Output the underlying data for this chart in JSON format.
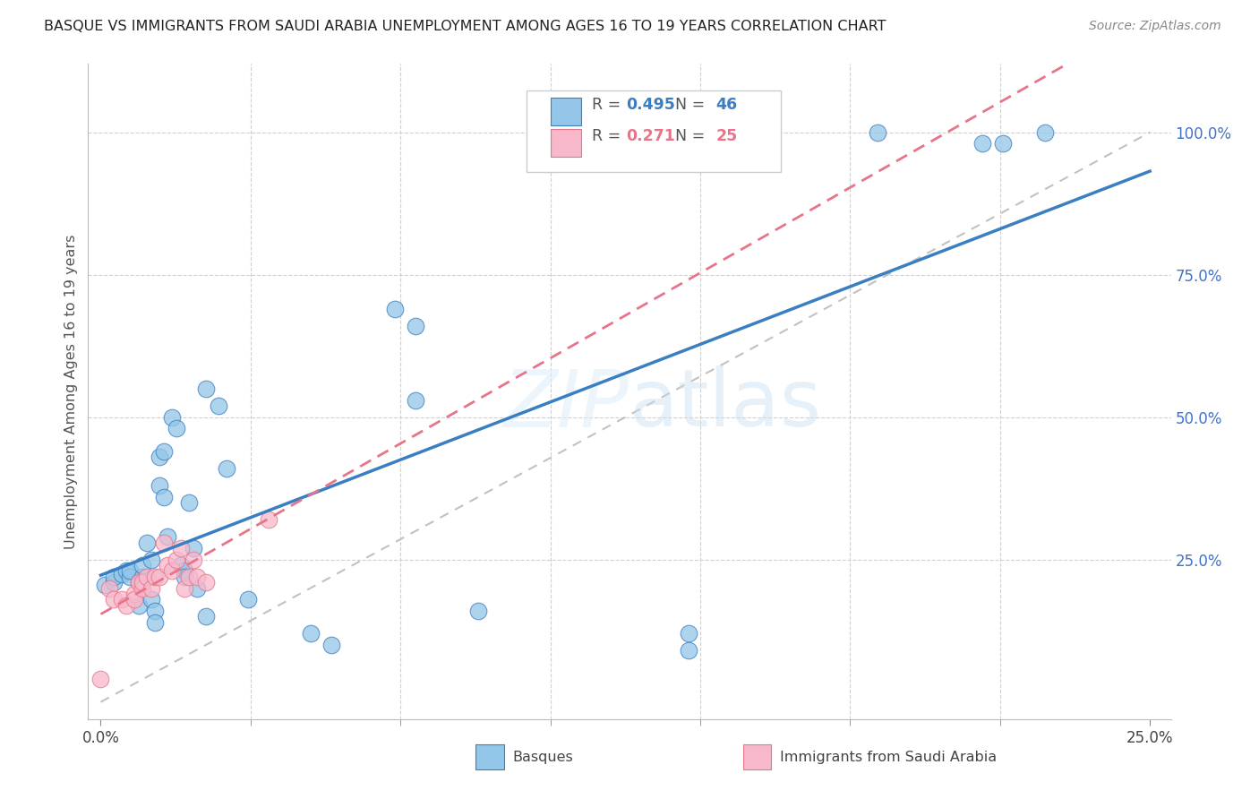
{
  "title": "BASQUE VS IMMIGRANTS FROM SAUDI ARABIA UNEMPLOYMENT AMONG AGES 16 TO 19 YEARS CORRELATION CHART",
  "source": "Source: ZipAtlas.com",
  "ylabel": "Unemployment Among Ages 16 to 19 years",
  "x_tick_labels": [
    "0.0%",
    "",
    "",
    "",
    "",
    "",
    "",
    "25.0%"
  ],
  "y_tick_values_right": [
    25.0,
    50.0,
    75.0,
    100.0
  ],
  "y_tick_labels_right": [
    "25.0%",
    "50.0%",
    "75.0%",
    "100.0%"
  ],
  "xlim": [
    -0.3,
    25.5
  ],
  "ylim": [
    -3.0,
    112.0
  ],
  "r_basque": 0.495,
  "n_basque": 46,
  "r_saudi": 0.271,
  "n_saudi": 25,
  "color_basque": "#93c6e8",
  "color_saudi": "#f7b8cc",
  "color_basque_line": "#3a7fc1",
  "color_saudi_line": "#e8748a",
  "color_ref_line": "#bbbbbb",
  "legend_labels": [
    "Basques",
    "Immigrants from Saudi Arabia"
  ],
  "basque_x": [
    0.1,
    0.3,
    0.3,
    0.5,
    0.6,
    0.7,
    0.7,
    0.9,
    0.9,
    1.0,
    1.0,
    1.1,
    1.2,
    1.2,
    1.3,
    1.3,
    1.4,
    1.4,
    1.5,
    1.5,
    1.6,
    1.7,
    1.8,
    1.9,
    2.0,
    2.0,
    2.1,
    2.2,
    2.3,
    2.5,
    2.5,
    2.8,
    3.0,
    3.5,
    5.0,
    5.5,
    7.0,
    7.5,
    7.5,
    9.0,
    14.0,
    14.0,
    18.5,
    21.0,
    21.5,
    22.5
  ],
  "basque_y": [
    20.5,
    21.0,
    22.0,
    22.5,
    23.0,
    22.0,
    23.0,
    21.0,
    17.0,
    22.0,
    24.0,
    28.0,
    25.0,
    18.0,
    16.0,
    14.0,
    43.0,
    38.0,
    44.0,
    36.0,
    29.0,
    50.0,
    48.0,
    24.0,
    23.0,
    22.0,
    35.0,
    27.0,
    20.0,
    15.0,
    55.0,
    52.0,
    41.0,
    18.0,
    12.0,
    10.0,
    69.0,
    53.0,
    66.0,
    16.0,
    9.0,
    12.0,
    100.0,
    98.0,
    98.0,
    100.0
  ],
  "saudi_x": [
    0.0,
    0.2,
    0.3,
    0.5,
    0.6,
    0.8,
    0.8,
    0.9,
    1.0,
    1.0,
    1.1,
    1.2,
    1.3,
    1.4,
    1.5,
    1.6,
    1.7,
    1.8,
    1.9,
    2.0,
    2.1,
    2.2,
    2.3,
    2.5,
    4.0
  ],
  "saudi_y": [
    4.0,
    20.0,
    18.0,
    18.0,
    17.0,
    19.0,
    18.0,
    21.0,
    20.0,
    21.0,
    22.0,
    20.0,
    22.0,
    22.0,
    28.0,
    24.0,
    23.0,
    25.0,
    27.0,
    20.0,
    22.0,
    25.0,
    22.0,
    21.0,
    32.0
  ]
}
